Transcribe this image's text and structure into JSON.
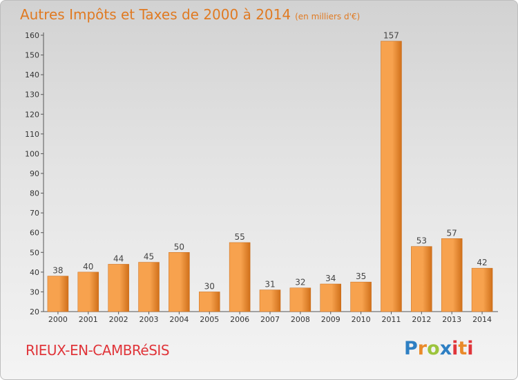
{
  "header": {
    "title": "Autres Impôts et Taxes de 2000 à 2014",
    "subtitle": "(en milliers d'€)"
  },
  "footer": {
    "place": "RIEUX-EN-CAMBRéSIS",
    "logo": "Proxiti"
  },
  "colors": {
    "bar_light": "#f7a24e",
    "bar_dark": "#d0701a",
    "title": "#e07a22",
    "place": "#e0353a"
  },
  "chart_data": {
    "type": "bar",
    "categories": [
      "2000",
      "2001",
      "2002",
      "2003",
      "2004",
      "2005",
      "2006",
      "2007",
      "2008",
      "2009",
      "2010",
      "2011",
      "2012",
      "2013",
      "2014"
    ],
    "values": [
      38,
      40,
      44,
      45,
      50,
      30,
      55,
      31,
      32,
      34,
      35,
      157,
      53,
      57,
      42
    ],
    "yticks": [
      20,
      30,
      40,
      50,
      60,
      70,
      80,
      90,
      100,
      110,
      120,
      130,
      140,
      150,
      160
    ],
    "ylim": [
      20,
      160
    ],
    "grid": false,
    "title": "Autres Impôts et Taxes de 2000 à 2014",
    "xlabel": "",
    "ylabel": ""
  }
}
